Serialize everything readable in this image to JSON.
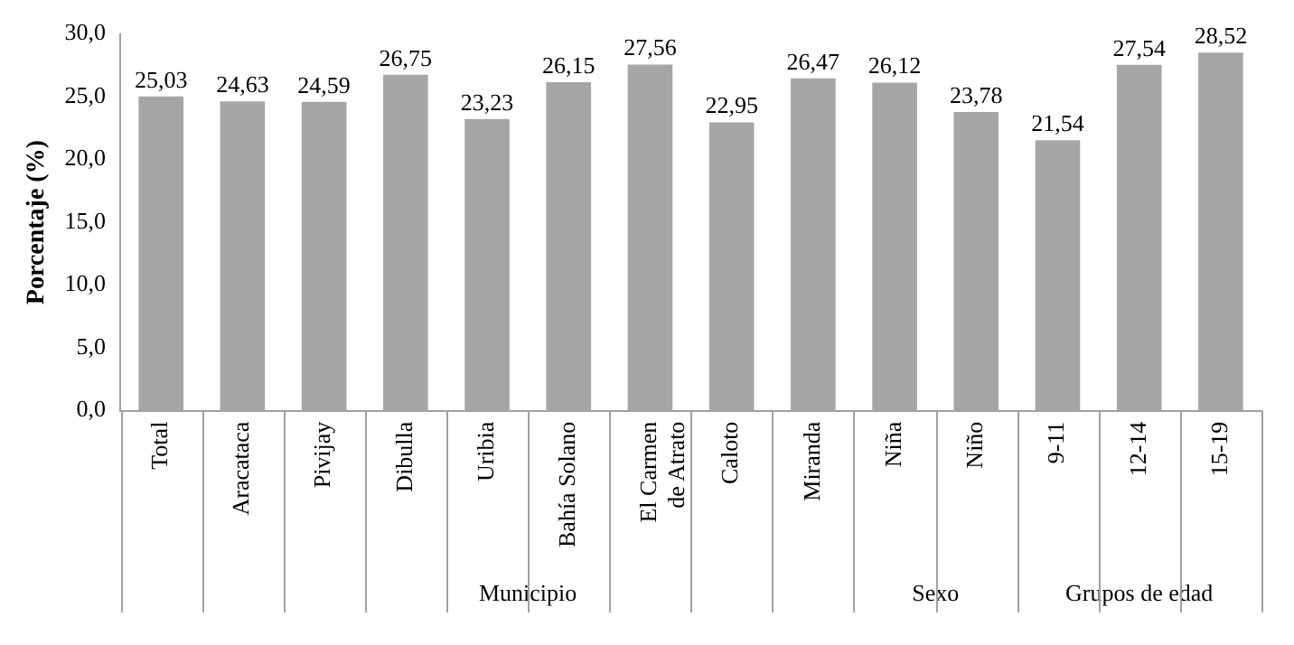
{
  "chart_data": {
    "type": "bar",
    "ylabel": "Porcentaje (%)",
    "categories": [
      "Total",
      "Aracataca",
      "Pivijay",
      "Dibulla",
      "Uribia",
      "Bahía Solano",
      "El Carmen de Atrato",
      "Caloto",
      "Miranda",
      "Niña",
      "Niño",
      "9-11",
      "12-14",
      "15-19"
    ],
    "values": [
      25.03,
      24.63,
      24.59,
      26.75,
      23.23,
      26.15,
      27.56,
      22.95,
      26.47,
      26.12,
      23.78,
      21.54,
      27.54,
      28.52
    ],
    "value_labels": [
      "25,03",
      "24,63",
      "24,59",
      "26,75",
      "23,23",
      "26,15",
      "27,56",
      "22,95",
      "26,47",
      "26,12",
      "23,78",
      "21,54",
      "27,54",
      "28,52"
    ],
    "color": "#a6a6a6",
    "ylim": [
      0,
      30
    ],
    "yticks": [
      {
        "value": 0,
        "label": "0,0"
      },
      {
        "value": 5,
        "label": "5,0"
      },
      {
        "value": 10,
        "label": "10,0"
      },
      {
        "value": 15,
        "label": "15,0"
      },
      {
        "value": 20,
        "label": "20,0"
      },
      {
        "value": 25,
        "label": "25,0"
      },
      {
        "value": 30,
        "label": "30,0"
      }
    ],
    "annotations": [
      "Municipio",
      "Sexo",
      "Grupos de edad"
    ],
    "grid": false
  }
}
